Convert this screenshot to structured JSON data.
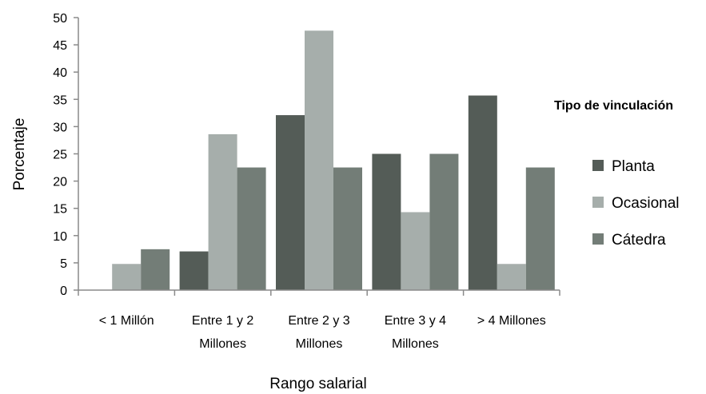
{
  "chart_data": {
    "type": "bar",
    "xlabel": "Rango salarial",
    "ylabel": "Porcentaje",
    "ylim": [
      0,
      50
    ],
    "yticks": [
      "0",
      "5",
      "10",
      "15",
      "20",
      "25",
      "30",
      "35",
      "40",
      "45",
      "50"
    ],
    "categories": [
      [
        "< 1 Millón"
      ],
      [
        "Entre 1 y 2",
        "Millones"
      ],
      [
        "Entre 2 y 3",
        "Millones"
      ],
      [
        "Entre 3 y 4",
        "Millones"
      ],
      [
        "> 4 Millones"
      ]
    ],
    "legend_title": "Tipo de  vinculación",
    "legend_position": "right",
    "grid": false,
    "series": [
      {
        "name": "Planta",
        "color": "#545c57",
        "values": [
          0,
          7.1,
          32.1,
          25,
          35.7
        ]
      },
      {
        "name": "Ocasional",
        "color": "#a6aeab",
        "values": [
          4.8,
          28.6,
          47.6,
          14.3,
          4.8
        ]
      },
      {
        "name": "Cátedra",
        "color": "#737d77",
        "values": [
          7.5,
          22.5,
          22.5,
          25,
          22.5
        ]
      }
    ]
  }
}
